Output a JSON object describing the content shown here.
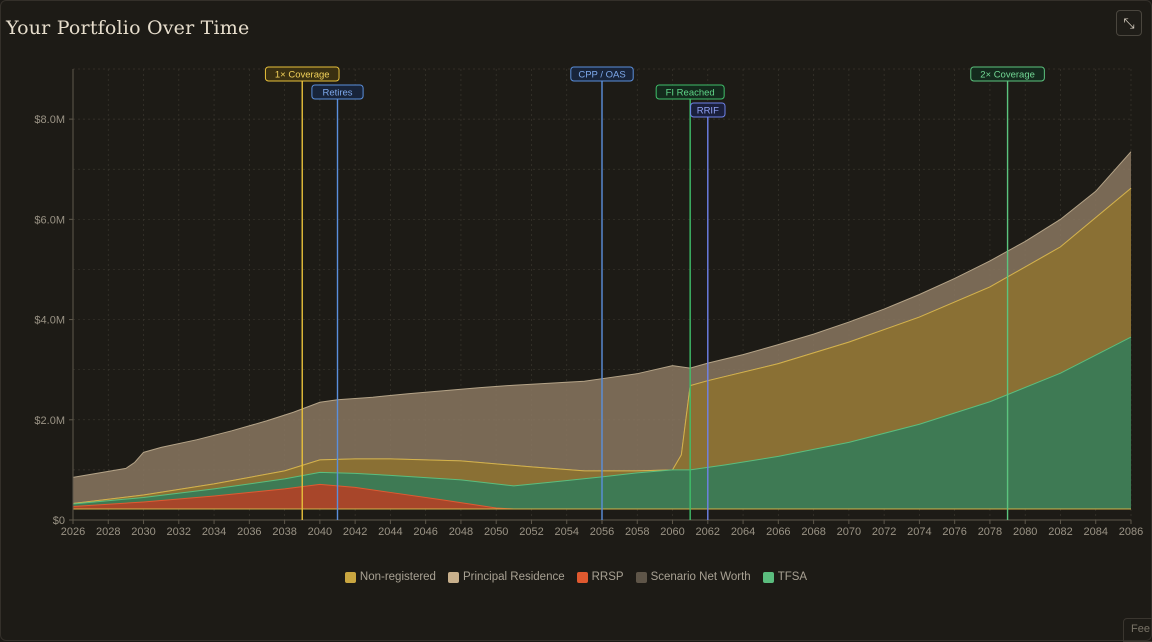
{
  "page": {
    "title": "Your Portfolio Over Time",
    "expand_icon": "expand-icon",
    "expand_glyph": "⤡",
    "feedback_label": "Fee"
  },
  "chart_data": {
    "type": "area",
    "title": "Your Portfolio Over Time",
    "xlabel": "",
    "ylabel": "",
    "xlim": [
      2026,
      2086
    ],
    "ylim": [
      0,
      9.0
    ],
    "y_unit": "$M",
    "grid": true,
    "legend_position": "bottom-center",
    "x_ticks": [
      2026,
      2028,
      2030,
      2032,
      2034,
      2036,
      2038,
      2040,
      2042,
      2044,
      2046,
      2048,
      2050,
      2052,
      2054,
      2056,
      2058,
      2060,
      2062,
      2064,
      2066,
      2068,
      2070,
      2072,
      2074,
      2076,
      2078,
      2080,
      2082,
      2084,
      2086
    ],
    "y_ticks": [
      {
        "value": 0,
        "label": "$0"
      },
      {
        "value": 2,
        "label": "$2.0M"
      },
      {
        "value": 4,
        "label": "$4.0M"
      },
      {
        "value": 6,
        "label": "$6.0M"
      },
      {
        "value": 8,
        "label": "$8.0M"
      }
    ],
    "base_offset": 0.22,
    "layers": [
      {
        "key": "scenario",
        "fill": "#8a7760",
        "stroke": "#b5a488",
        "opacity": 0.85,
        "x": [
          2026,
          2029,
          2029.5,
          2030,
          2031,
          2033,
          2035,
          2037,
          2038.5,
          2040,
          2041,
          2043,
          2045,
          2047,
          2049,
          2051,
          2053,
          2055,
          2056,
          2058,
          2060,
          2061,
          2062,
          2064,
          2066,
          2068,
          2070,
          2072,
          2074,
          2076,
          2078,
          2080,
          2082,
          2084,
          2086
        ],
        "y": [
          0.85,
          1.03,
          1.15,
          1.35,
          1.45,
          1.6,
          1.78,
          1.98,
          2.15,
          2.35,
          2.4,
          2.45,
          2.52,
          2.58,
          2.64,
          2.69,
          2.73,
          2.77,
          2.82,
          2.92,
          3.08,
          3.03,
          3.13,
          3.3,
          3.5,
          3.71,
          3.95,
          4.21,
          4.5,
          4.82,
          5.17,
          5.56,
          6.0,
          6.56,
          7.35
        ]
      },
      {
        "key": "principal",
        "fill": "#7a6a54",
        "stroke": "#a99a80",
        "opacity": 0.9,
        "x": [
          2026,
          2030,
          2034,
          2038,
          2040,
          2042,
          2044,
          2048,
          2052,
          2055,
          2058,
          2060,
          2060.5,
          2061,
          2062,
          2066,
          2070,
          2074,
          2078,
          2082,
          2086
        ],
        "y": [
          0.33,
          0.5,
          0.72,
          0.98,
          1.2,
          1.22,
          1.22,
          1.18,
          1.06,
          0.98,
          0.98,
          1.0,
          1.3,
          2.68,
          2.78,
          3.12,
          3.55,
          4.05,
          4.65,
          5.45,
          6.62
        ]
      },
      {
        "key": "nonreg",
        "fill": "#8a7034",
        "stroke": "#d4b24a",
        "opacity": 1,
        "x": [
          2026,
          2030,
          2034,
          2038,
          2040,
          2042,
          2044,
          2048,
          2052,
          2055,
          2058,
          2060,
          2060.5,
          2061,
          2062,
          2066,
          2070,
          2074,
          2078,
          2082,
          2086
        ],
        "y": [
          0.33,
          0.5,
          0.72,
          0.98,
          1.2,
          1.22,
          1.22,
          1.18,
          1.06,
          0.98,
          0.98,
          1.0,
          1.3,
          2.68,
          2.78,
          3.12,
          3.55,
          4.05,
          4.65,
          5.45,
          6.62
        ]
      },
      {
        "key": "tfsa",
        "fill": "#3e7a54",
        "stroke": "#5bbd7e",
        "opacity": 1,
        "x": [
          2026,
          2030,
          2034,
          2038,
          2040,
          2042,
          2044,
          2048,
          2051,
          2053,
          2056,
          2058,
          2060,
          2061,
          2063,
          2066,
          2070,
          2074,
          2078,
          2082,
          2086
        ],
        "y": [
          0.32,
          0.45,
          0.62,
          0.82,
          0.95,
          0.93,
          0.89,
          0.8,
          0.68,
          0.75,
          0.86,
          0.94,
          1.0,
          1.0,
          1.1,
          1.27,
          1.55,
          1.91,
          2.36,
          2.93,
          3.65
        ]
      },
      {
        "key": "rrsp",
        "fill": "#a8462a",
        "stroke": "#e05a32",
        "opacity": 1,
        "x": [
          2026,
          2030,
          2034,
          2038,
          2040,
          2042,
          2044,
          2047,
          2050,
          2051,
          2086
        ],
        "y": [
          0.27,
          0.36,
          0.48,
          0.62,
          0.71,
          0.65,
          0.55,
          0.4,
          0.24,
          0.22,
          0.22
        ]
      }
    ],
    "events": [
      {
        "label": "1× Coverage",
        "year": 2039,
        "color": "#e8c13a",
        "text_color": "#f3d25a",
        "fill": "#3a3011",
        "row": 0
      },
      {
        "label": "Retires",
        "year": 2041,
        "color": "#5a8fdc",
        "text_color": "#7ea9ec",
        "fill": "#18243a",
        "row": 1
      },
      {
        "label": "CPP / OAS",
        "year": 2056,
        "color": "#5a8fdc",
        "text_color": "#7ea9ec",
        "fill": "#18243a",
        "row": 0
      },
      {
        "label": "FI Reached",
        "year": 2061,
        "color": "#3fbf6a",
        "text_color": "#5fd688",
        "fill": "#132a1c",
        "row": 1
      },
      {
        "label": "RRIF",
        "year": 2062,
        "color": "#6f82ea",
        "text_color": "#92a2f4",
        "fill": "#1a1f3c",
        "row": 2
      },
      {
        "label": "2× Coverage",
        "year": 2079,
        "color": "#5bc47e",
        "text_color": "#73d895",
        "fill": "#142a1d",
        "row": 0
      }
    ],
    "legend": [
      {
        "label": "Non-registered",
        "color": "#c9a640"
      },
      {
        "label": "Principal Residence",
        "color": "#c8b08c"
      },
      {
        "label": "RRSP",
        "color": "#e0592f"
      },
      {
        "label": "Scenario Net Worth",
        "color": "#5e5548"
      },
      {
        "label": "TFSA",
        "color": "#5bbd7e"
      }
    ]
  }
}
